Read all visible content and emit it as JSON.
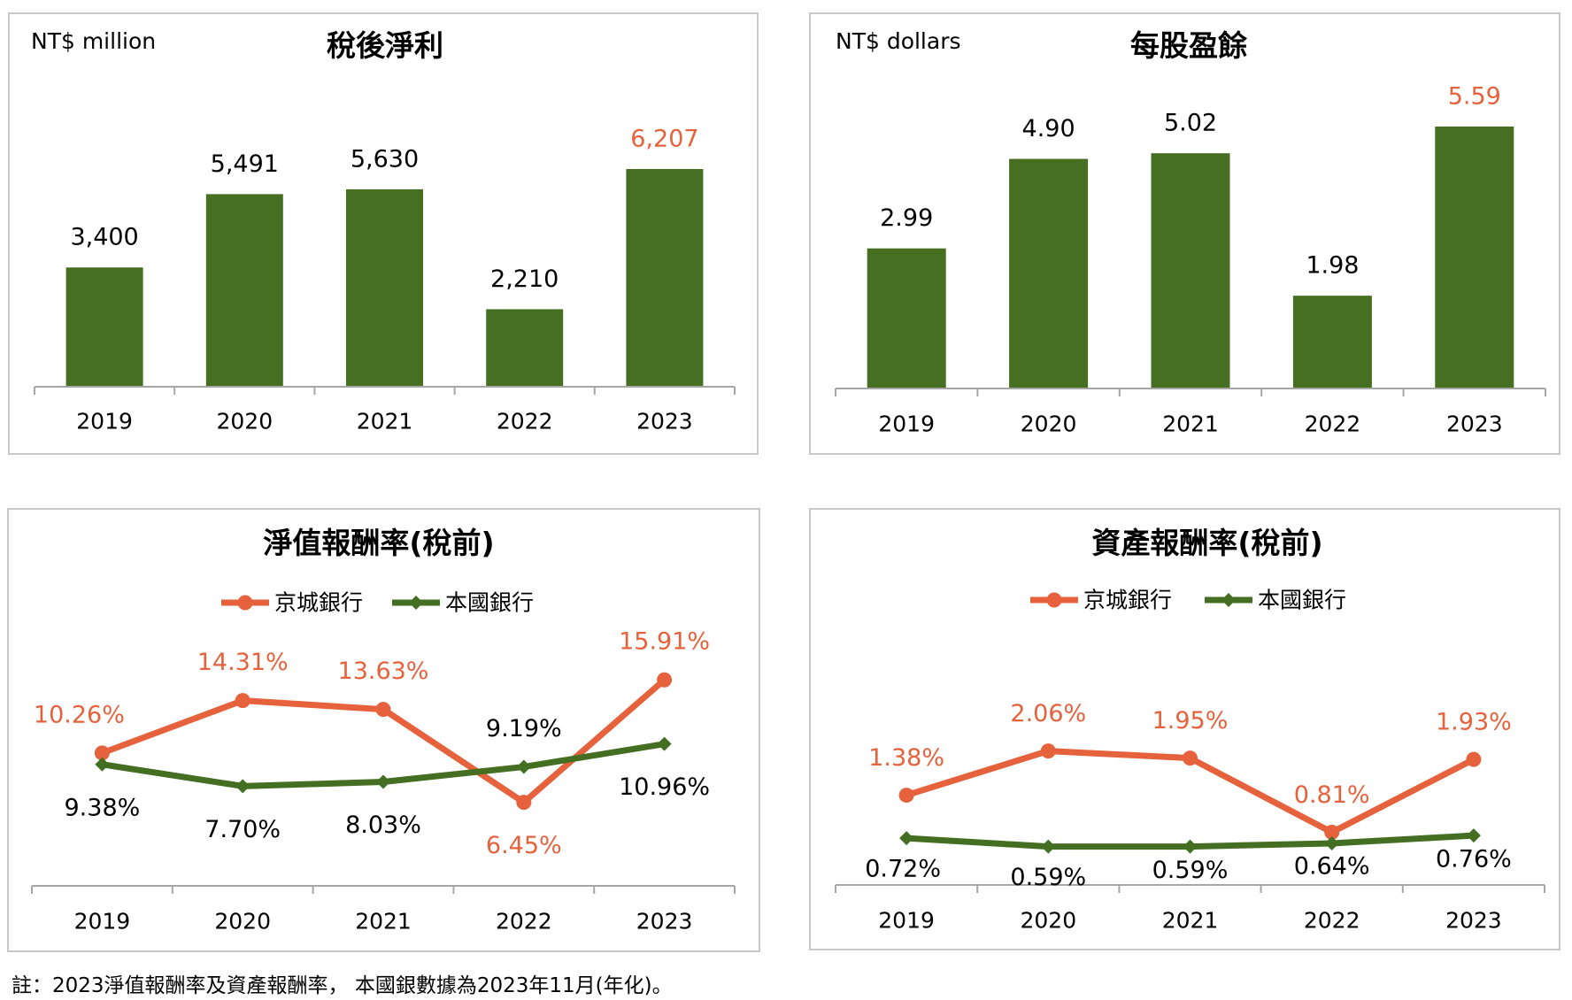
{
  "colors": {
    "kingsBank": "#E5623C",
    "domesticBanks": "#446F22",
    "bar": "#466F21",
    "highlight": "#E5623C",
    "axis": "#A6A6A6",
    "border": "#C8C8C8"
  },
  "footnote": "註：2023淨值報酬率及資產報酬率， 本國銀數據為2023年11月(年化)。",
  "chart_data": [
    {
      "type": "bar",
      "title": "稅後淨利",
      "unit_label": "NT$ million",
      "categories": [
        "2019",
        "2020",
        "2021",
        "2022",
        "2023"
      ],
      "values": [
        3400,
        5491,
        5630,
        2210,
        6207
      ],
      "value_labels": [
        "3,400",
        "5,491",
        "5,630",
        "2,210",
        "6,207"
      ],
      "highlight_index": 4,
      "ylim": [
        0,
        11000
      ],
      "xlabel": "",
      "ylabel": "",
      "grid": false
    },
    {
      "type": "bar",
      "title": "每股盈餘",
      "unit_label": "NT$ dollars",
      "categories": [
        "2019",
        "2020",
        "2021",
        "2022",
        "2023"
      ],
      "values": [
        2.99,
        4.9,
        5.02,
        1.98,
        5.59
      ],
      "value_labels": [
        "2.99",
        "4.90",
        "5.02",
        "1.98",
        "5.59"
      ],
      "highlight_index": 4,
      "ylim": [
        0,
        8.2
      ],
      "xlabel": "",
      "ylabel": "",
      "grid": false
    },
    {
      "type": "line",
      "title": "淨值報酬率(稅前)",
      "categories": [
        "2019",
        "2020",
        "2021",
        "2022",
        "2023"
      ],
      "legend_position": "top",
      "series": [
        {
          "name": "京城銀行",
          "values": [
            10.26,
            14.31,
            13.63,
            6.45,
            15.91
          ],
          "labels": [
            "10.26%",
            "14.31%",
            "13.63%",
            "6.45%",
            "15.91%"
          ],
          "marker": "circle"
        },
        {
          "name": "本國銀行",
          "values": [
            9.38,
            7.7,
            8.03,
            9.19,
            10.96
          ],
          "labels": [
            "9.38%",
            "7.70%",
            "8.03%",
            "9.19%",
            "10.96%"
          ],
          "marker": "diamond"
        }
      ],
      "ylim": [
        0,
        18
      ],
      "xlabel": "",
      "ylabel": "",
      "grid": false
    },
    {
      "type": "line",
      "title": "資產報酬率(稅前)",
      "categories": [
        "2019",
        "2020",
        "2021",
        "2022",
        "2023"
      ],
      "legend_position": "top",
      "series": [
        {
          "name": "京城銀行",
          "values": [
            1.38,
            2.06,
            1.95,
            0.81,
            1.93
          ],
          "labels": [
            "1.38%",
            "2.06%",
            "1.95%",
            "0.81%",
            "1.93%"
          ],
          "marker": "circle"
        },
        {
          "name": "本國銀行",
          "values": [
            0.72,
            0.59,
            0.59,
            0.64,
            0.76
          ],
          "labels": [
            "0.72%",
            "0.59%",
            "0.59%",
            "0.64%",
            "0.76%"
          ],
          "marker": "diamond"
        }
      ],
      "ylim": [
        0,
        2.8
      ],
      "xlabel": "",
      "ylabel": "",
      "grid": false
    }
  ]
}
